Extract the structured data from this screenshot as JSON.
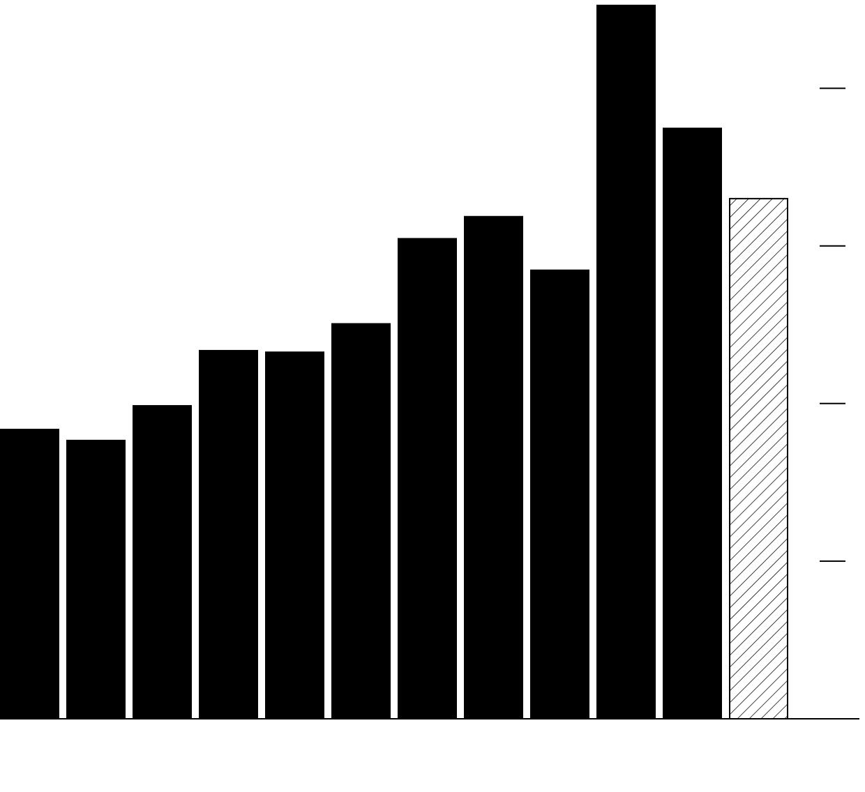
{
  "chart_data": {
    "type": "bar",
    "categories": [
      null,
      null,
      null,
      null,
      null,
      null,
      null,
      null,
      null,
      null,
      null,
      null
    ],
    "values": [
      1.84,
      1.77,
      1.99,
      2.34,
      2.33,
      2.51,
      3.05,
      3.19,
      2.85,
      4.53,
      3.75,
      3.3
    ],
    "hatch": [
      false,
      false,
      false,
      false,
      false,
      false,
      false,
      false,
      false,
      false,
      false,
      true
    ],
    "color": "#000000",
    "ylim": [
      0,
      4.56
    ],
    "yticks": [
      1,
      2,
      3,
      4
    ],
    "grid": false
  }
}
